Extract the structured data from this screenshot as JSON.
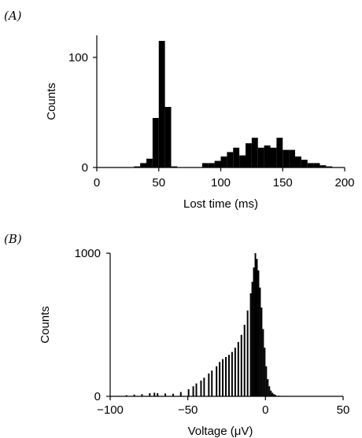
{
  "chart_data": [
    {
      "type": "bar",
      "panel_label": "(A)",
      "title": "",
      "xlabel": "Lost time (ms)",
      "ylabel": "Counts",
      "xlim": [
        0,
        200
      ],
      "ylim": [
        0,
        120
      ],
      "xticks": [
        0,
        50,
        100,
        150,
        200
      ],
      "yticks": [
        0,
        100
      ],
      "grid": false,
      "bin_width": 5,
      "bins": [
        {
          "x": 30,
          "y": 1
        },
        {
          "x": 35,
          "y": 4
        },
        {
          "x": 40,
          "y": 8
        },
        {
          "x": 45,
          "y": 45
        },
        {
          "x": 50,
          "y": 115
        },
        {
          "x": 55,
          "y": 55
        },
        {
          "x": 60,
          "y": 1
        },
        {
          "x": 85,
          "y": 4
        },
        {
          "x": 90,
          "y": 4
        },
        {
          "x": 95,
          "y": 6
        },
        {
          "x": 100,
          "y": 10
        },
        {
          "x": 105,
          "y": 14
        },
        {
          "x": 110,
          "y": 18
        },
        {
          "x": 115,
          "y": 11
        },
        {
          "x": 120,
          "y": 22
        },
        {
          "x": 125,
          "y": 27
        },
        {
          "x": 130,
          "y": 18
        },
        {
          "x": 135,
          "y": 20
        },
        {
          "x": 140,
          "y": 18
        },
        {
          "x": 145,
          "y": 27
        },
        {
          "x": 150,
          "y": 16
        },
        {
          "x": 155,
          "y": 16
        },
        {
          "x": 160,
          "y": 10
        },
        {
          "x": 165,
          "y": 7
        },
        {
          "x": 170,
          "y": 4
        },
        {
          "x": 175,
          "y": 4
        },
        {
          "x": 180,
          "y": 2
        },
        {
          "x": 185,
          "y": 1
        }
      ]
    },
    {
      "type": "bar",
      "panel_label": "(B)",
      "title": "",
      "xlabel": "Voltage (μV)",
      "ylabel": "Counts",
      "xlim": [
        -100,
        50
      ],
      "ylim": [
        0,
        1000
      ],
      "xticks": [
        -100,
        -50,
        0,
        50
      ],
      "xtick_labels": [
        "−100",
        "−50",
        "0",
        "50"
      ],
      "yticks": [
        0,
        1000
      ],
      "grid": false,
      "bin_width": 1,
      "bins": [
        {
          "x": -95,
          "y": 3
        },
        {
          "x": -90,
          "y": 8
        },
        {
          "x": -85,
          "y": 12
        },
        {
          "x": -80,
          "y": 15
        },
        {
          "x": -75,
          "y": 22
        },
        {
          "x": -72,
          "y": 25
        },
        {
          "x": -70,
          "y": 22
        },
        {
          "x": -65,
          "y": 20
        },
        {
          "x": -60,
          "y": 18
        },
        {
          "x": -55,
          "y": 30
        },
        {
          "x": -50,
          "y": 50
        },
        {
          "x": -47,
          "y": 70
        },
        {
          "x": -45,
          "y": 90
        },
        {
          "x": -42,
          "y": 110
        },
        {
          "x": -40,
          "y": 130
        },
        {
          "x": -37,
          "y": 160
        },
        {
          "x": -35,
          "y": 180
        },
        {
          "x": -32,
          "y": 210
        },
        {
          "x": -30,
          "y": 240
        },
        {
          "x": -28,
          "y": 260
        },
        {
          "x": -26,
          "y": 275
        },
        {
          "x": -24,
          "y": 290
        },
        {
          "x": -22,
          "y": 310
        },
        {
          "x": -20,
          "y": 340
        },
        {
          "x": -18,
          "y": 380
        },
        {
          "x": -16,
          "y": 430
        },
        {
          "x": -14,
          "y": 500
        },
        {
          "x": -12,
          "y": 600
        },
        {
          "x": -10,
          "y": 720
        },
        {
          "x": -9,
          "y": 800
        },
        {
          "x": -8,
          "y": 900
        },
        {
          "x": -7,
          "y": 1000
        },
        {
          "x": -6,
          "y": 960
        },
        {
          "x": -5,
          "y": 880
        },
        {
          "x": -4,
          "y": 760
        },
        {
          "x": -3,
          "y": 620
        },
        {
          "x": -2,
          "y": 470
        },
        {
          "x": -1,
          "y": 340
        },
        {
          "x": 0,
          "y": 210
        },
        {
          "x": 1,
          "y": 120
        },
        {
          "x": 2,
          "y": 70
        },
        {
          "x": 3,
          "y": 40
        },
        {
          "x": 4,
          "y": 25
        },
        {
          "x": 5,
          "y": 15
        },
        {
          "x": 6,
          "y": 10
        },
        {
          "x": 8,
          "y": 5
        },
        {
          "x": 10,
          "y": 3
        }
      ]
    }
  ]
}
